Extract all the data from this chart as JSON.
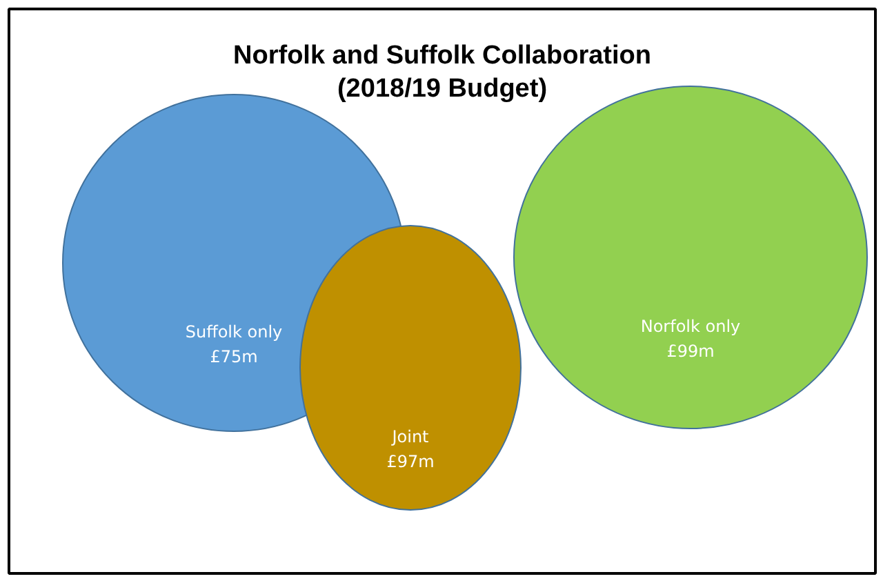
{
  "chart_data": {
    "type": "other",
    "title": "Norfolk and Suffolk Collaboration\n(2018/19 Budget)",
    "categories": [
      "Suffolk only",
      "Norfolk only",
      "Joint"
    ],
    "values": [
      75,
      99,
      97
    ],
    "value_labels": [
      "£75m",
      "£99m",
      "£97m"
    ],
    "colors": [
      "#5b9bd5",
      "#92d050",
      "#bf9000"
    ]
  }
}
